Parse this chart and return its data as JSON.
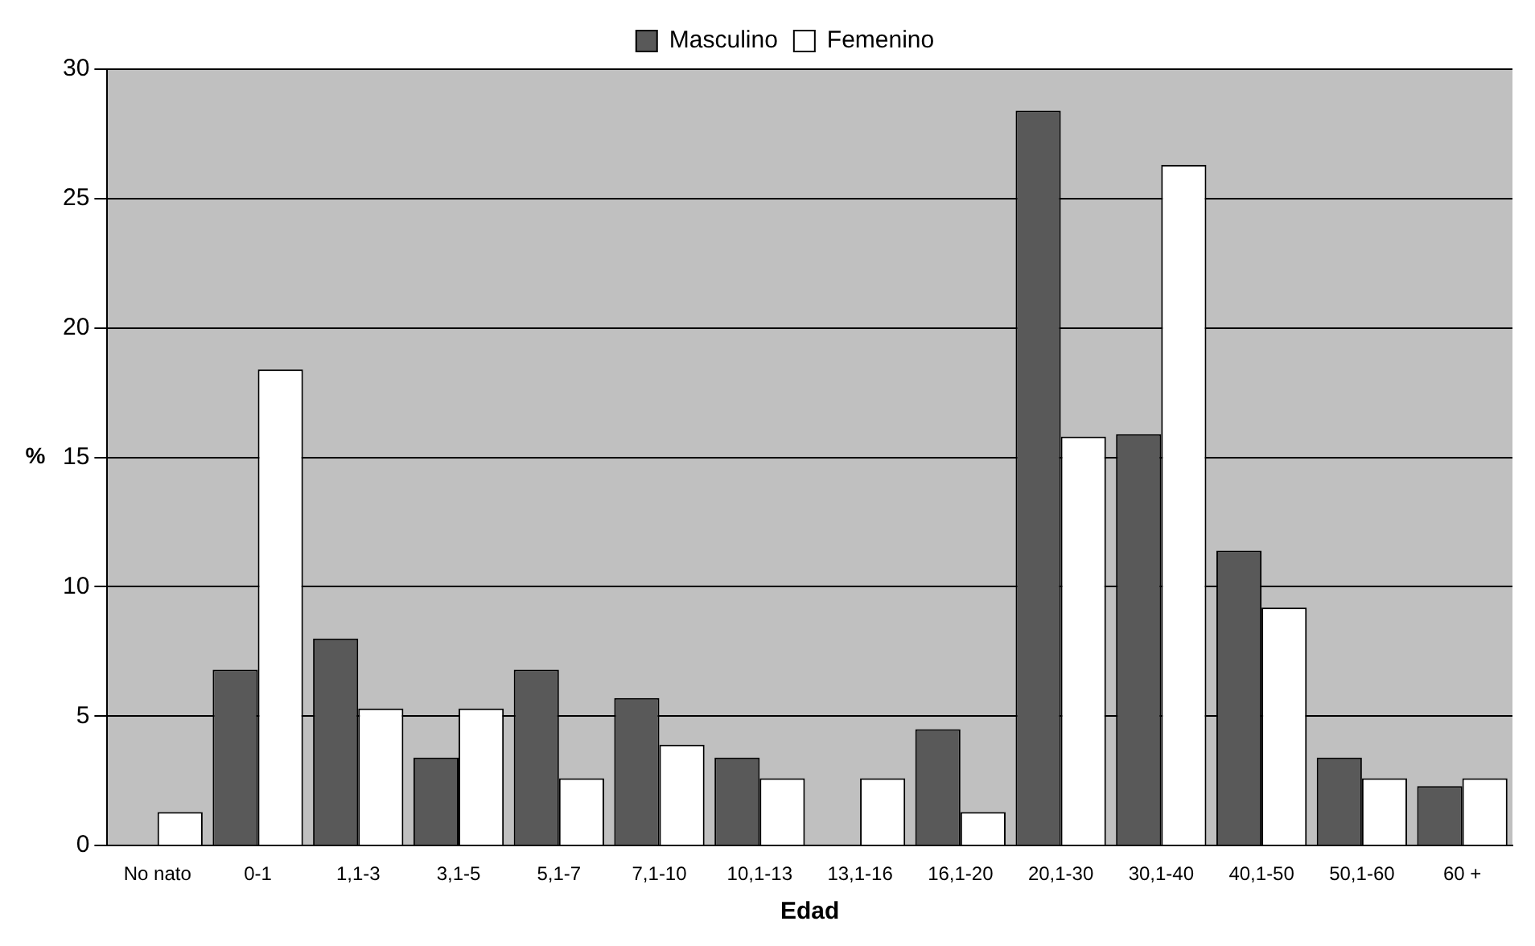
{
  "chart_data": {
    "type": "bar",
    "xlabel": "Edad",
    "ylabel": "%",
    "categories": [
      "No nato",
      "0-1",
      "1,1-3",
      "3,1-5",
      "5,1-7",
      "7,1-10",
      "10,1-13",
      "13,1-16",
      "16,1-20",
      "20,1-30",
      "30,1-40",
      "40,1-50",
      "50,1-60",
      "60 +"
    ],
    "series": [
      {
        "name": "Masculino",
        "color": "#595959",
        "values": [
          0,
          6.8,
          8.0,
          3.4,
          6.8,
          5.7,
          3.4,
          0,
          4.5,
          28.4,
          15.9,
          11.4,
          3.4,
          2.3
        ]
      },
      {
        "name": "Femenino",
        "color": "#ffffff",
        "values": [
          1.3,
          18.4,
          5.3,
          5.3,
          2.6,
          3.9,
          2.6,
          2.6,
          1.3,
          15.8,
          26.3,
          9.2,
          2.6,
          2.6
        ]
      }
    ],
    "ylim": [
      0,
      30
    ],
    "yticks": [
      0,
      5,
      10,
      15,
      20,
      25,
      30
    ],
    "grid": "y",
    "legend": "top"
  }
}
